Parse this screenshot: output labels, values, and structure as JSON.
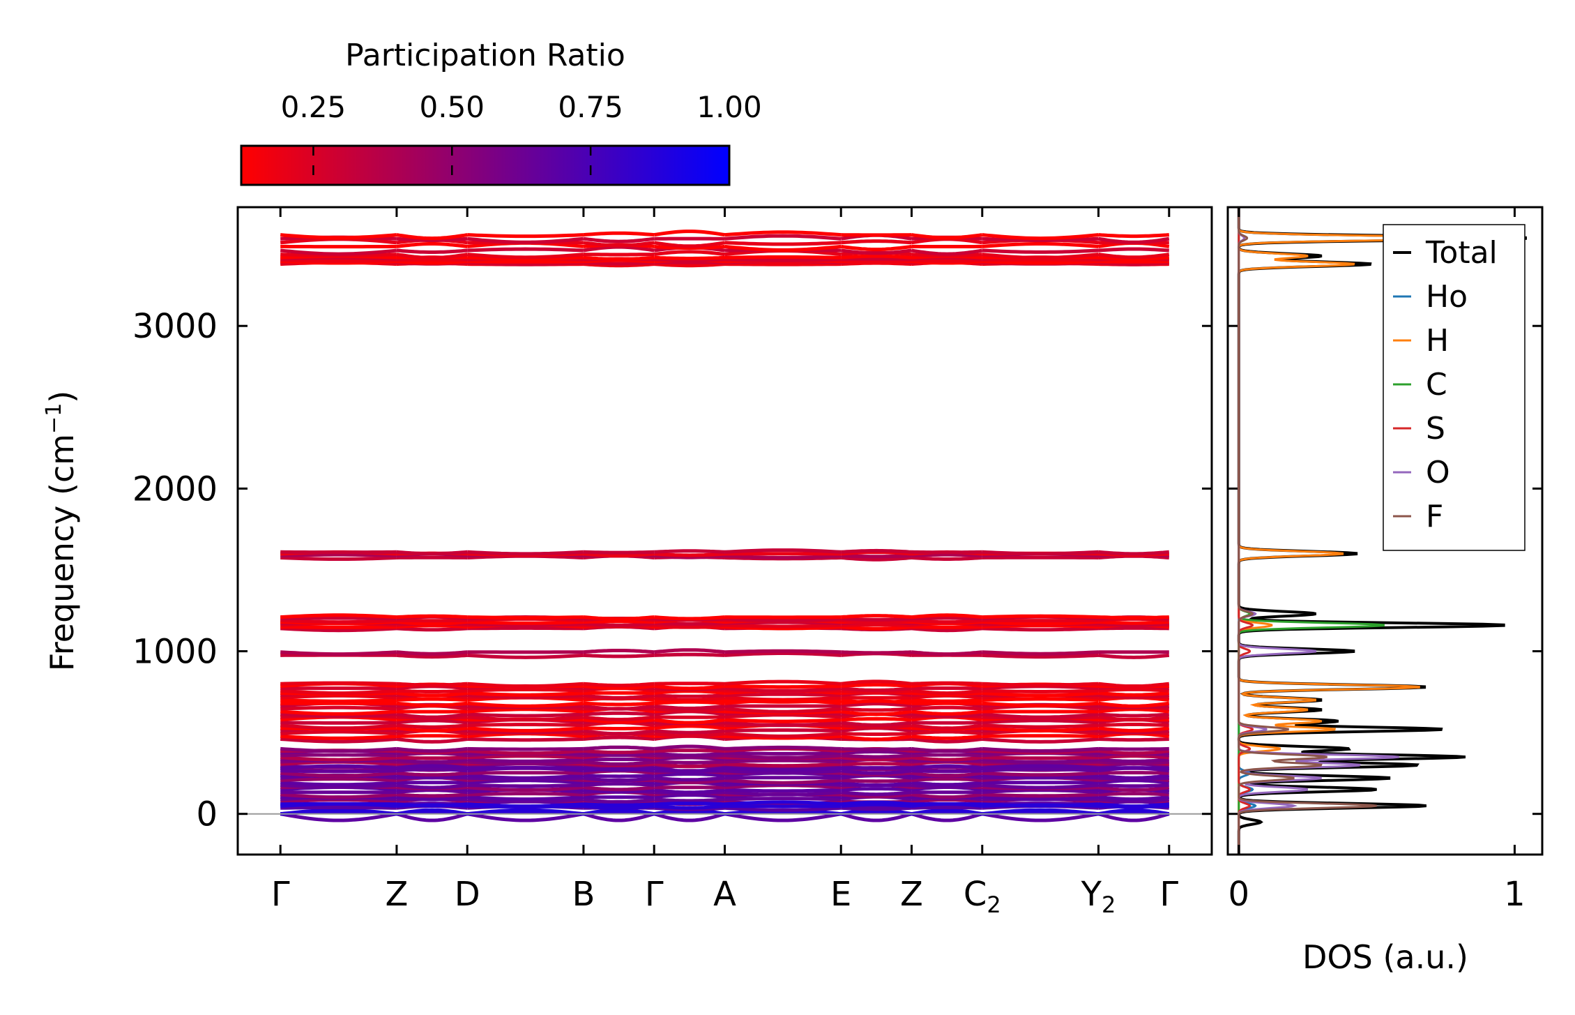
{
  "colors": {
    "pr_low": "#ff0000",
    "pr_high": "#0000ff",
    "total": "#000000",
    "Ho": "#1f77b4",
    "H": "#ff7f0e",
    "C": "#2ca02c",
    "S": "#d62728",
    "O": "#9467bd",
    "F": "#8c564b"
  },
  "chart_data": [
    {
      "type": "line",
      "name": "phonon-band-structure",
      "ylabel": "Frequency (cm",
      "ylabel_sup": "−1",
      "ylabel_end": ")",
      "ylim": [
        -250,
        3730
      ],
      "yticks": [
        0,
        1000,
        2000,
        3000
      ],
      "kpoints": [
        {
          "label": "Γ",
          "sub": "",
          "x": 0.0
        },
        {
          "label": "Z",
          "sub": "",
          "x": 0.79
        },
        {
          "label": "D",
          "sub": "",
          "x": 1.27
        },
        {
          "label": "B",
          "sub": "",
          "x": 2.06
        },
        {
          "label": "Γ",
          "sub": "",
          "x": 2.54
        },
        {
          "label": "A",
          "sub": "",
          "x": 3.02
        },
        {
          "label": "E",
          "sub": "",
          "x": 3.81
        },
        {
          "label": "Z",
          "sub": "",
          "x": 4.29
        },
        {
          "label": "C",
          "sub": "2",
          "x": 4.77
        },
        {
          "label": "Y",
          "sub": "2",
          "x": 5.56
        },
        {
          "label": "Γ",
          "sub": "",
          "x": 6.04
        }
      ],
      "xlim": [
        -0.29,
        6.33
      ],
      "band_groups": [
        {
          "f0": 3380,
          "f1": 3420,
          "n": 6,
          "pr": 0.18
        },
        {
          "f0": 3440,
          "f1": 3560,
          "n": 6,
          "pr": 0.2
        },
        {
          "f0": 1575,
          "f1": 1610,
          "n": 4,
          "pr": 0.3
        },
        {
          "f0": 1140,
          "f1": 1210,
          "n": 8,
          "pr": 0.2
        },
        {
          "f0": 975,
          "f1": 995,
          "n": 2,
          "pr": 0.3
        },
        {
          "f0": 700,
          "f1": 800,
          "n": 8,
          "pr": 0.18
        },
        {
          "f0": 460,
          "f1": 680,
          "n": 14,
          "pr": 0.22
        },
        {
          "f0": 280,
          "f1": 400,
          "n": 10,
          "pr": 0.5
        },
        {
          "f0": 60,
          "f1": 280,
          "n": 16,
          "pr": 0.6
        },
        {
          "f0": 0,
          "f1": 60,
          "n": 6,
          "pr": 0.8
        }
      ],
      "colorbar": {
        "title": "Participation Ratio",
        "range": [
          0.12,
          1.0
        ],
        "ticks": [
          "0.25",
          "0.50",
          "0.75",
          "1.00"
        ],
        "tick_values": [
          0.25,
          0.5,
          0.75,
          1.0
        ]
      }
    },
    {
      "type": "line",
      "name": "phonon-dos",
      "xlabel": "DOS (a.u.)",
      "xlim": [
        -0.04,
        1.1
      ],
      "ylim": [
        -250,
        3730
      ],
      "xticks": [
        0,
        1
      ],
      "legend": {
        "position": "top-right",
        "entries": [
          "Total",
          "Ho",
          "H",
          "C",
          "S",
          "O",
          "F"
        ]
      },
      "series": [
        {
          "name": "Total",
          "peaks": [
            [
              3540,
              1.05
            ],
            [
              3430,
              0.3
            ],
            [
              3380,
              0.48
            ],
            [
              1600,
              0.43
            ],
            [
              1230,
              0.28
            ],
            [
              1160,
              0.97
            ],
            [
              1000,
              0.42
            ],
            [
              780,
              0.68
            ],
            [
              700,
              0.3
            ],
            [
              640,
              0.3
            ],
            [
              570,
              0.36
            ],
            [
              520,
              0.74
            ],
            [
              400,
              0.4
            ],
            [
              350,
              0.82
            ],
            [
              300,
              0.65
            ],
            [
              220,
              0.55
            ],
            [
              150,
              0.5
            ],
            [
              50,
              0.68
            ],
            [
              -50,
              0.08
            ]
          ]
        },
        {
          "name": "Ho",
          "peaks": [
            [
              50,
              0.06
            ],
            [
              150,
              0.05
            ],
            [
              250,
              0.04
            ]
          ]
        },
        {
          "name": "H",
          "peaks": [
            [
              3540,
              0.85
            ],
            [
              3430,
              0.25
            ],
            [
              3380,
              0.42
            ],
            [
              1600,
              0.38
            ],
            [
              1160,
              0.12
            ],
            [
              780,
              0.66
            ],
            [
              700,
              0.28
            ],
            [
              640,
              0.25
            ],
            [
              570,
              0.3
            ],
            [
              520,
              0.35
            ],
            [
              400,
              0.15
            ]
          ]
        },
        {
          "name": "C",
          "peaks": [
            [
              1160,
              0.53
            ],
            [
              1230,
              0.04
            ]
          ]
        },
        {
          "name": "S",
          "peaks": [
            [
              1160,
              0.05
            ],
            [
              1000,
              0.04
            ],
            [
              520,
              0.05
            ],
            [
              400,
              0.04
            ],
            [
              150,
              0.04
            ],
            [
              50,
              0.04
            ]
          ]
        },
        {
          "name": "O",
          "peaks": [
            [
              3540,
              0.02
            ],
            [
              1230,
              0.06
            ],
            [
              1000,
              0.28
            ],
            [
              520,
              0.1
            ],
            [
              350,
              0.58
            ],
            [
              300,
              0.44
            ],
            [
              220,
              0.3
            ],
            [
              150,
              0.25
            ],
            [
              50,
              0.2
            ]
          ]
        },
        {
          "name": "F",
          "peaks": [
            [
              3540,
              0.03
            ],
            [
              1230,
              0.05
            ],
            [
              520,
              0.18
            ],
            [
              350,
              0.32
            ],
            [
              300,
              0.3
            ],
            [
              220,
              0.2
            ],
            [
              50,
              0.5
            ]
          ]
        }
      ]
    }
  ]
}
